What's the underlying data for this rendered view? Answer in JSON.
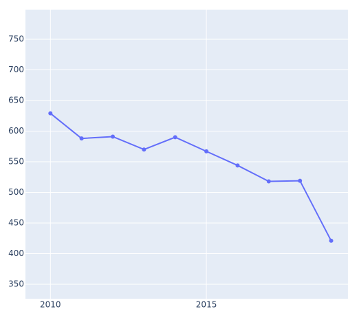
{
  "chart_data": {
    "type": "line",
    "x": [
      2010,
      2011,
      2012,
      2013,
      2014,
      2015,
      2016,
      2017,
      2018,
      2019
    ],
    "series": [
      {
        "color": "#636efa",
        "values": [
          629,
          588,
          591,
          570,
          590,
          567,
          544,
          518,
          519,
          421
        ]
      }
    ],
    "xlim": [
      2009.2,
      2019.54
    ],
    "xticks": [
      2010,
      2015
    ],
    "ylim": [
      326.4,
      798.3
    ],
    "yticks": [
      350,
      400,
      450,
      500,
      550,
      600,
      650,
      700,
      750
    ],
    "grid": true,
    "background": "#e5ecf6"
  }
}
